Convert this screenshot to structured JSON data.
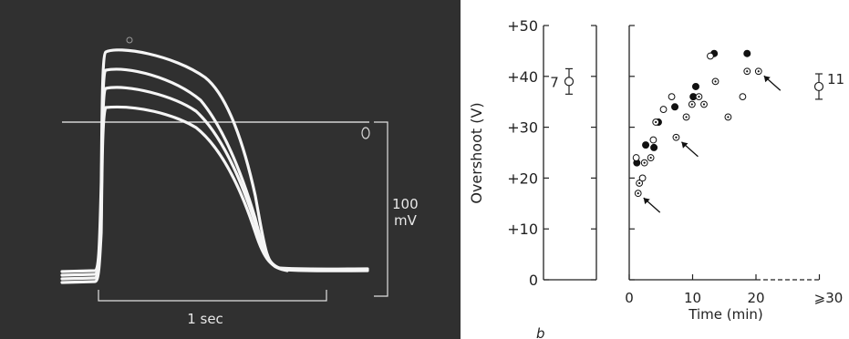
{
  "photo_panel": {
    "scale_bar_voltage": [
      "100",
      "mV"
    ],
    "scale_bar_time": "1 sec"
  },
  "panel_label": "b",
  "chart_data": {
    "type": "scatter",
    "ylabel": "Overshoot (V)",
    "xlabel": "Time (min)",
    "ylim": [
      0,
      50
    ],
    "y_ticks": [
      "0",
      "+10",
      "+20",
      "+30",
      "+40",
      "+50"
    ],
    "x_ticks": [
      "0",
      "10",
      "20",
      "⩾30"
    ],
    "xlim": [
      0,
      30
    ],
    "grid": false,
    "left_group": {
      "label": "7",
      "mean": 39,
      "error": 2.5
    },
    "right_group": {
      "label": "11",
      "mean": 38,
      "error": 2.5
    },
    "series": [
      {
        "marker": "filled",
        "points": [
          [
            1.2,
            23
          ],
          [
            2.6,
            26.5
          ],
          [
            3.9,
            26
          ],
          [
            4.6,
            31
          ],
          [
            7.2,
            34
          ],
          [
            10.1,
            36
          ],
          [
            10.5,
            38
          ],
          [
            13.4,
            44.5
          ],
          [
            18.6,
            44.5
          ]
        ]
      },
      {
        "marker": "open",
        "points": [
          [
            1.1,
            24
          ],
          [
            2.1,
            20
          ],
          [
            3.8,
            27.5
          ],
          [
            5.4,
            33.5
          ],
          [
            6.7,
            36
          ],
          [
            12.8,
            44
          ],
          [
            17.9,
            36
          ]
        ]
      },
      {
        "marker": "dotted",
        "points": [
          [
            1.4,
            17
          ],
          [
            1.6,
            19
          ],
          [
            2.4,
            23
          ],
          [
            3.4,
            24
          ],
          [
            4.2,
            31
          ],
          [
            7.4,
            28
          ],
          [
            9.0,
            32
          ],
          [
            9.9,
            34.5
          ],
          [
            11.0,
            36
          ],
          [
            11.8,
            34.5
          ],
          [
            13.6,
            39
          ],
          [
            15.6,
            32
          ],
          [
            18.6,
            41
          ],
          [
            20.4,
            41
          ]
        ]
      }
    ],
    "arrows_at": [
      [
        1.4,
        17
      ],
      [
        7.4,
        28
      ],
      [
        20.4,
        41
      ]
    ]
  }
}
